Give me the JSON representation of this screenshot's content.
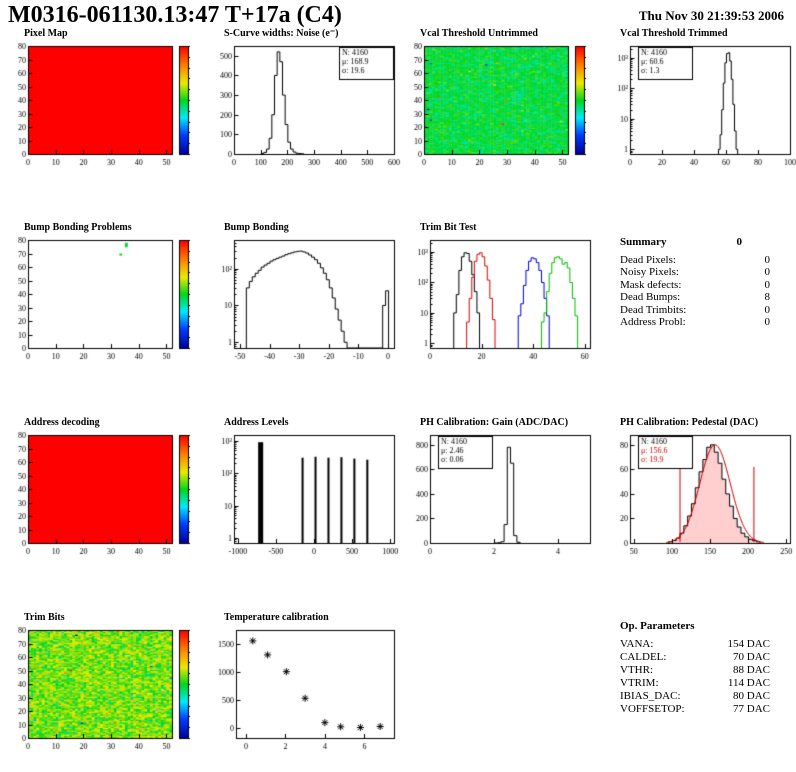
{
  "header": {
    "title": "M0316-061130.13:47 T+17a (C4)",
    "date": "Thu Nov 30 21:39:53 2006"
  },
  "summary": {
    "title": "Summary",
    "total": "0",
    "rows": [
      {
        "label": "Dead Pixels:",
        "value": "0"
      },
      {
        "label": "Noisy Pixels:",
        "value": "0"
      },
      {
        "label": "Mask defects:",
        "value": "0"
      },
      {
        "label": "Dead Bumps:",
        "value": "8"
      },
      {
        "label": "Dead Trimbits:",
        "value": "0"
      },
      {
        "label": "Address Probl:",
        "value": "0"
      }
    ]
  },
  "op_parameters": {
    "title": "Op. Parameters",
    "rows": [
      {
        "label": "VANA:",
        "value": "154 DAC"
      },
      {
        "label": "CALDEL:",
        "value": "70 DAC"
      },
      {
        "label": "VTHR:",
        "value": "88 DAC"
      },
      {
        "label": "VTRIM:",
        "value": "114 DAC"
      },
      {
        "label": "IBIAS_DAC:",
        "value": "80 DAC"
      },
      {
        "label": "VOFFSETOP:",
        "value": "77 DAC"
      }
    ]
  },
  "colors": {
    "accent_red": "#cc0000",
    "heat_max": "#ff0000"
  },
  "chart_data": [
    {
      "title": "Pixel Map",
      "type": "heatmap",
      "fill": "uniform",
      "value": 1,
      "xlim": [
        0,
        52
      ],
      "ylim": [
        0,
        80
      ],
      "xticks": [
        0,
        10,
        20,
        30,
        40,
        50
      ],
      "yticks": [
        0,
        10,
        20,
        30,
        40,
        50,
        60,
        70,
        80
      ],
      "colorbar": true
    },
    {
      "title": "S-Curve widths: Noise (e⁻)",
      "type": "histogram",
      "xlim": [
        0,
        600
      ],
      "ylim": [
        0,
        550
      ],
      "xticks": [
        0,
        100,
        200,
        300,
        400,
        500,
        600
      ],
      "yticks": [
        0,
        100,
        200,
        300,
        400,
        500
      ],
      "bins": {
        "start": 100,
        "width": 10,
        "counts": [
          2,
          8,
          25,
          80,
          200,
          400,
          520,
          470,
          300,
          150,
          60,
          25,
          10,
          4,
          2,
          1
        ]
      },
      "stats": {
        "pos": "tr",
        "lines": [
          {
            "text": "N: 4160"
          },
          {
            "text": "μ: 168.9"
          },
          {
            "text": "σ: 19.6"
          }
        ]
      }
    },
    {
      "title": "Vcal Threshold Untrimmed",
      "type": "heatmap",
      "fill": "noise",
      "noise": {
        "mean": 0.48,
        "sd": 0.08,
        "seed": 12345
      },
      "xlim": [
        0,
        52
      ],
      "ylim": [
        0,
        80
      ],
      "xticks": [
        0,
        10,
        20,
        30,
        40,
        50
      ],
      "yticks": [
        0,
        10,
        20,
        30,
        40,
        50,
        60,
        70,
        80
      ],
      "colorbar": true
    },
    {
      "title": "Vcal Threshold Trimmed",
      "type": "histogram",
      "logy": true,
      "xlim": [
        0,
        100
      ],
      "ylim": [
        0.7,
        2500
      ],
      "xticks": [
        0,
        20,
        40,
        60,
        80,
        100
      ],
      "yticks": [
        1,
        10,
        100,
        1000
      ],
      "bins": {
        "start": 55,
        "width": 1,
        "counts": [
          1,
          3,
          20,
          150,
          700,
          1400,
          1500,
          800,
          200,
          30,
          4,
          1
        ]
      },
      "stats": {
        "pos": "tl",
        "lines": [
          {
            "text": "N: 4160"
          },
          {
            "text": "μ: 60.6"
          },
          {
            "text": "σ: 1.3"
          }
        ]
      }
    },
    {
      "title": "Bump Bonding Problems",
      "type": "heatmap",
      "fill": "points",
      "points": [
        {
          "x": 35,
          "y": 77,
          "v": 0.45
        },
        {
          "x": 35,
          "y": 76,
          "v": 0.5
        },
        {
          "x": 35,
          "y": 75,
          "v": 0.45
        },
        {
          "x": 33,
          "y": 69,
          "v": 0.5
        }
      ],
      "xlim": [
        0,
        52
      ],
      "ylim": [
        0,
        80
      ],
      "xticks": [
        0,
        10,
        20,
        30,
        40,
        50
      ],
      "yticks": [
        0,
        10,
        20,
        30,
        40,
        50,
        60,
        70,
        80
      ],
      "colorbar": true
    },
    {
      "title": "Bump Bonding",
      "type": "histogram",
      "logy": true,
      "xlim": [
        -52,
        2
      ],
      "ylim": [
        0.7,
        600
      ],
      "xticks": [
        -50,
        -40,
        -30,
        -20,
        -10,
        0
      ],
      "yticks": [
        1,
        10,
        100
      ],
      "bins": {
        "start": -48,
        "width": 1,
        "counts": [
          30,
          45,
          60,
          75,
          90,
          110,
          125,
          140,
          160,
          175,
          190,
          205,
          220,
          240,
          255,
          270,
          285,
          295,
          300,
          285,
          265,
          235,
          205,
          175,
          140,
          105,
          75,
          50,
          30,
          16,
          8,
          4,
          2,
          1,
          0,
          0,
          0,
          0,
          0,
          0,
          0,
          0,
          0,
          0,
          0,
          0,
          10,
          25
        ]
      }
    },
    {
      "title": "Trim Bit Test",
      "type": "multi-histogram",
      "logy": true,
      "xlim": [
        0,
        62
      ],
      "ylim": [
        0.7,
        2500
      ],
      "xticks": [
        0,
        20,
        40,
        60
      ],
      "yticks": [
        1,
        10,
        100,
        1000
      ],
      "series": [
        {
          "name": "trim-black",
          "color": "#000000",
          "bins": {
            "start": 9,
            "width": 1,
            "counts": [
              10,
              40,
              250,
              700,
              950,
              900,
              500,
              180,
              50,
              10
            ]
          }
        },
        {
          "name": "trim-red",
          "color": "#dd0000",
          "bins": {
            "start": 14,
            "width": 1,
            "counts": [
              5,
              30,
              150,
              500,
              850,
              950,
              700,
              350,
              120,
              30,
              6
            ]
          }
        },
        {
          "name": "trim-blue",
          "color": "#0000cc",
          "bins": {
            "start": 34,
            "width": 1,
            "counts": [
              8,
              20,
              80,
              250,
              500,
              650,
              600,
              450,
              250,
              100,
              30,
              8
            ]
          }
        },
        {
          "name": "trim-green",
          "color": "#00bb00",
          "bins": {
            "start": 43,
            "width": 1,
            "counts": [
              5,
              10,
              50,
              200,
              450,
              650,
              700,
              600,
              400,
              450,
              300,
              100,
              30,
              8
            ]
          }
        }
      ]
    },
    {
      "title": "Address decoding",
      "type": "heatmap",
      "fill": "uniform",
      "value": 1,
      "xlim": [
        0,
        52
      ],
      "ylim": [
        0,
        80
      ],
      "xticks": [
        0,
        10,
        20,
        30,
        40,
        50
      ],
      "yticks": [
        0,
        10,
        20,
        30,
        40,
        50,
        60,
        70,
        80
      ],
      "colorbar": true
    },
    {
      "title": "Address Levels",
      "type": "spikes",
      "logy": true,
      "xlim": [
        -1050,
        1050
      ],
      "ylim": [
        0.7,
        1500
      ],
      "xticks": [
        -1000,
        -500,
        0,
        500,
        1000
      ],
      "yticks": [
        1,
        10,
        100,
        1000
      ],
      "spikes": [
        [
          -700,
          900,
          5
        ],
        [
          -150,
          300,
          2
        ],
        [
          20,
          320,
          2
        ],
        [
          190,
          300,
          2
        ],
        [
          360,
          310,
          2
        ],
        [
          530,
          280,
          2
        ],
        [
          700,
          260,
          2
        ]
      ]
    },
    {
      "title": "PH Calibration: Gain (ADC/DAC)",
      "type": "histogram",
      "xlim": [
        0,
        5
      ],
      "ylim": [
        0,
        880
      ],
      "xticks": [
        0,
        2,
        4
      ],
      "yticks": [
        0,
        200,
        400,
        600,
        800
      ],
      "bins": {
        "start": 2.0,
        "width": 0.1,
        "counts": [
          0,
          2,
          10,
          150,
          780,
          650,
          60,
          6
        ]
      },
      "stats": {
        "pos": "tl",
        "lines": [
          {
            "text": "N: 4160"
          },
          {
            "text": "μ: 2.46"
          },
          {
            "text": "σ: 0.06"
          }
        ]
      }
    },
    {
      "title": "PH Calibration: Pedestal (DAC)",
      "type": "histogram",
      "xlim": [
        45,
        255
      ],
      "ylim": [
        0,
        88
      ],
      "xticks": [
        50,
        100,
        150,
        200,
        250
      ],
      "yticks": [
        0,
        20,
        40,
        60,
        80
      ],
      "bins": {
        "start": 95,
        "width": 5,
        "counts": [
          1,
          2,
          4,
          8,
          14,
          22,
          32,
          45,
          58,
          68,
          78,
          80,
          74,
          65,
          52,
          40,
          30,
          20,
          13,
          8,
          5,
          3,
          2,
          1
        ]
      },
      "fillColor": "rgba(255,60,60,0.25)",
      "fit": {
        "mu": 156.6,
        "sd": 20,
        "amp": 80,
        "color": "#cc0000"
      },
      "vlines": [
        {
          "x": 110,
          "h": 62
        },
        {
          "x": 207,
          "h": 62
        }
      ],
      "stats": {
        "pos": "tl",
        "lines": [
          {
            "text": "N: 4160",
            "color": "#000000"
          },
          {
            "text": "μ: 156.6",
            "color": "#cc0000"
          },
          {
            "text": "σ: 19.9",
            "color": "#cc0000"
          }
        ]
      }
    },
    {
      "title": "Trim Bits",
      "type": "heatmap",
      "fill": "noise",
      "noise": {
        "mean": 0.58,
        "sd": 0.13,
        "seed": 777
      },
      "xlim": [
        0,
        52
      ],
      "ylim": [
        0,
        80
      ],
      "xticks": [
        0,
        10,
        20,
        30,
        40,
        50
      ],
      "yticks": [
        0,
        10,
        20,
        30,
        40,
        50,
        60,
        70,
        80
      ],
      "colorbar": true
    },
    {
      "title": "Temperature calibration",
      "type": "scatter",
      "marker": "asterisk",
      "xlim": [
        -0.5,
        7.5
      ],
      "ylim": [
        -180,
        1750
      ],
      "xticks": [
        0,
        2,
        4,
        6
      ],
      "yticks": [
        0,
        500,
        1000,
        1500
      ],
      "points": [
        [
          0.35,
          1555
        ],
        [
          1.1,
          1305
        ],
        [
          2.05,
          1005
        ],
        [
          3.0,
          530
        ],
        [
          4.0,
          95
        ],
        [
          4.8,
          20
        ],
        [
          5.8,
          8
        ],
        [
          6.8,
          25
        ]
      ]
    }
  ]
}
